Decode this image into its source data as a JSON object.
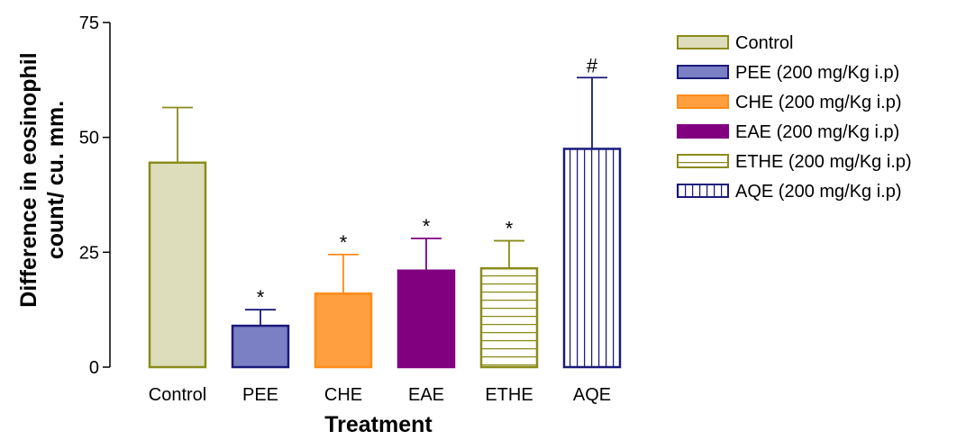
{
  "chart_data": {
    "type": "bar",
    "title": "",
    "xlabel": "Treatment",
    "ylabel_line1": "Difference in eosinophil",
    "ylabel_line2": "count/ cu. mm.",
    "ylim": [
      0,
      75
    ],
    "yticks": [
      "0",
      "25",
      "50",
      "75"
    ],
    "categories": [
      "Control",
      "PEE",
      "CHE",
      "EAE",
      "ETHE",
      "AQE"
    ],
    "values": [
      44.5,
      9,
      16,
      21,
      21.5,
      47.5
    ],
    "errors": [
      12,
      3.5,
      8.5,
      7,
      6,
      15.5
    ],
    "annotations": [
      "",
      "*",
      "*",
      "*",
      "*",
      "#"
    ],
    "legend_position": "right",
    "legend": [
      "Control",
      "PEE (200 mg/Kg i.p)",
      "CHE (200 mg/Kg i.p)",
      "EAE (200 mg/Kg i.p)",
      "ETHE (200 mg/Kg i.p)",
      "AQE (200 mg/Kg i.p)"
    ],
    "styles": [
      {
        "fill": "#ddddbb",
        "stroke": "#8b8b1a",
        "pattern": "solid"
      },
      {
        "fill": "#7b7fc4",
        "stroke": "#1a1a7a",
        "pattern": "solid"
      },
      {
        "fill": "#ff9f40",
        "stroke": "#ff8c1a",
        "pattern": "solid"
      },
      {
        "fill": "#800080",
        "stroke": "#800080",
        "pattern": "solid"
      },
      {
        "fill": "#ffffff",
        "stroke": "#8b8b1a",
        "pattern": "hlines"
      },
      {
        "fill": "#ffffff",
        "stroke": "#1a1a7a",
        "pattern": "vlines"
      }
    ]
  }
}
